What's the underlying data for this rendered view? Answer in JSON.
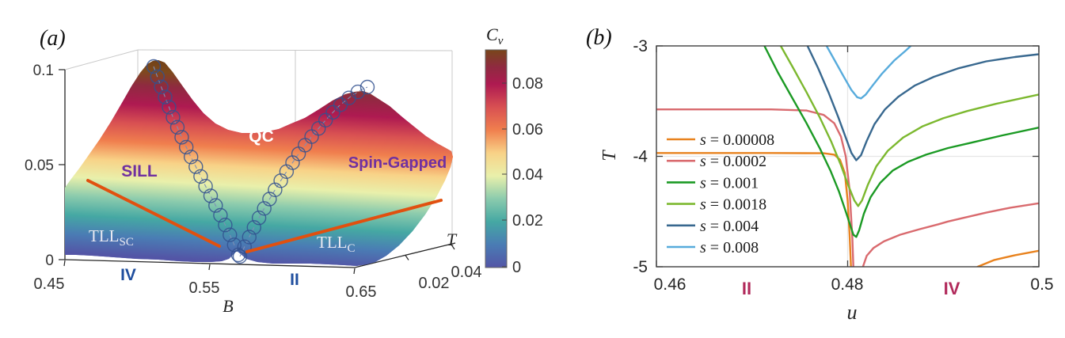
{
  "figure": {
    "background": "#ffffff",
    "description": "Two-panel physics figure: (a) 3D specific-heat surface Cv(B,T) with phase regions; (b) line plot of T vs u for six values of s"
  },
  "panel_a": {
    "tag": "(a)",
    "z_tick_labels": [
      "0",
      "0.05",
      "0.1"
    ],
    "b_axis": {
      "label": "B",
      "tick_labels": [
        "0.45",
        "0.55",
        "0.65"
      ]
    },
    "t_axis": {
      "label": "T",
      "tick_labels": [
        "0.02",
        "0.04"
      ]
    },
    "colorbar": {
      "title_main": "C",
      "title_sub": "v",
      "tick_labels": [
        "0",
        "0.02",
        "0.04",
        "0.06",
        "0.08"
      ]
    },
    "region_labels": {
      "qc": "QC",
      "sill": "SILL",
      "spin_gapped": "Spin-Gapped",
      "tll_left_main": "TLL",
      "tll_left_sub": "SC",
      "tll_right_main": "TLL",
      "tll_right_sub": "C"
    },
    "phase_labels": {
      "left": "IV",
      "right": "II"
    },
    "colors": {
      "phase_label_blue": "#1F4E9E",
      "region_purple": "#7030A0",
      "region_white": "#FFFFFF",
      "tll_light": "#E9E9F2",
      "boundary_orange": "#E1500F",
      "marker_circle_blue": "#33518F",
      "box_gray": "#C9C9C9"
    }
  },
  "panel_b": {
    "tag": "(b)",
    "x_axis": {
      "label": "u",
      "tick_labels": [
        "0.46",
        "0.48",
        "0.5"
      ]
    },
    "y_axis": {
      "label": "T",
      "tick_labels": [
        "-3",
        "-4",
        "-5"
      ]
    },
    "phase_labels": {
      "left": "II",
      "right": "IV"
    },
    "phase_label_color": "#B12A5B"
  },
  "chart_data": [
    {
      "type": "surface",
      "panel": "(a)",
      "xlabel": "B",
      "x_ticks": [
        0.45,
        0.55,
        0.65
      ],
      "ylabel": "T",
      "y_ticks": [
        0.02,
        0.04
      ],
      "zlabel": "Cv",
      "z_ticks": [
        0,
        0.05,
        0.1
      ],
      "zlim": [
        0,
        0.1
      ],
      "colorbar": {
        "label": "Cv",
        "ticks": [
          0,
          0.02,
          0.04,
          0.06,
          0.08
        ],
        "range": [
          0,
          0.095
        ]
      },
      "surface_summary": "Cv(B,T) has two ridges: a taller peak (Cv ~ 0.1) near B = 0.52 and a lower peak (Cv ~ 0.085) near B = 0.62 at high T, separated by a quantum-critical valley; Cv -> 0 as T -> 0 with a V-shaped phase boundary (open-circle markers) meeting at B ~ 0.565",
      "annotations": [
        "QC",
        "SILL",
        "Spin-Gapped",
        "TLL_SC",
        "TLL_C",
        "IV",
        "II"
      ],
      "colormap_stops": [
        "#5355A6",
        "#4A7CB4",
        "#45A8A3",
        "#8BCBAD",
        "#E9F0AB",
        "#F8D287",
        "#F07F4E",
        "#D85052",
        "#AE1A51",
        "#8F2A40",
        "#7E4A1D"
      ]
    },
    {
      "type": "line",
      "panel": "(b)",
      "xlabel": "u",
      "ylabel": "T",
      "xlim": [
        0.46,
        0.5
      ],
      "ylim": [
        -5,
        -3
      ],
      "x_ticks": [
        0.46,
        0.48,
        0.5
      ],
      "x_tick_labels": [
        "0.46",
        "0.48",
        "0.5"
      ],
      "y_ticks": [
        -3,
        -4,
        -5
      ],
      "y_tick_labels": [
        "-3",
        "-4",
        "-5"
      ],
      "grid": {
        "x_lines": [
          0.48
        ],
        "y_lines": [
          -4
        ],
        "color": "#E6E6E6"
      },
      "legend_position": "middle-left, no box",
      "region_labels": [
        {
          "text": "II",
          "u": 0.4694
        },
        {
          "text": "IV",
          "u": 0.4909
        }
      ],
      "series": [
        {
          "id": "s-0p00008",
          "label_var": "s",
          "label_rest": "= 0.00008",
          "color": "#E8821E",
          "segments": [
            [
              [
                0.46,
                -3.97
              ],
              [
                0.472,
                -3.97
              ],
              [
                0.4775,
                -3.972
              ],
              [
                0.4786,
                -3.985
              ],
              [
                0.4792,
                -4.03
              ],
              [
                0.4797,
                -4.15
              ],
              [
                0.48,
                -4.4
              ],
              [
                0.4802,
                -4.7
              ],
              [
                0.48035,
                -5.0
              ]
            ],
            [
              [
                0.4936,
                -5.0
              ],
              [
                0.4953,
                -4.94
              ],
              [
                0.4975,
                -4.895
              ],
              [
                0.5,
                -4.855
              ]
            ]
          ]
        },
        {
          "id": "s-0p0002",
          "label_var": "s",
          "label_rest": "= 0.0002",
          "color": "#D96A6E",
          "segments": [
            [
              [
                0.46,
                -3.575
              ],
              [
                0.472,
                -3.575
              ],
              [
                0.4757,
                -3.585
              ],
              [
                0.4775,
                -3.625
              ],
              [
                0.4786,
                -3.7
              ],
              [
                0.4793,
                -3.82
              ],
              [
                0.4798,
                -4.0
              ],
              [
                0.4802,
                -4.3
              ],
              [
                0.4805,
                -4.75
              ],
              [
                0.4806,
                -5.0
              ]
            ],
            [
              [
                0.4816,
                -5.0
              ],
              [
                0.482,
                -4.9
              ],
              [
                0.4827,
                -4.83
              ],
              [
                0.4838,
                -4.77
              ],
              [
                0.4855,
                -4.71
              ],
              [
                0.4875,
                -4.66
              ],
              [
                0.4895,
                -4.615
              ],
              [
                0.4905,
                -4.59
              ],
              [
                0.492,
                -4.56
              ],
              [
                0.4945,
                -4.51
              ],
              [
                0.497,
                -4.465
              ],
              [
                0.5,
                -4.425
              ]
            ]
          ]
        },
        {
          "id": "s-0p001",
          "label_var": "s",
          "label_rest": "= 0.001",
          "color": "#1B9A24",
          "segments": [
            [
              [
                0.4713,
                -3.0
              ],
              [
                0.4727,
                -3.24
              ],
              [
                0.4742,
                -3.47
              ],
              [
                0.4757,
                -3.7
              ],
              [
                0.4771,
                -3.93
              ],
              [
                0.4782,
                -4.13
              ],
              [
                0.4791,
                -4.32
              ],
              [
                0.4798,
                -4.5
              ],
              [
                0.4803,
                -4.63
              ],
              [
                0.4806,
                -4.71
              ],
              [
                0.4809,
                -4.73
              ],
              [
                0.4812,
                -4.67
              ],
              [
                0.4817,
                -4.52
              ],
              [
                0.4824,
                -4.37
              ],
              [
                0.4834,
                -4.24
              ],
              [
                0.4847,
                -4.13
              ],
              [
                0.4863,
                -4.05
              ],
              [
                0.4882,
                -3.985
              ],
              [
                0.4905,
                -3.925
              ],
              [
                0.493,
                -3.875
              ],
              [
                0.4962,
                -3.81
              ],
              [
                0.5,
                -3.74
              ]
            ]
          ]
        },
        {
          "id": "s-0p0018",
          "label_var": "s",
          "label_rest": "= 0.0018",
          "color": "#7CB82F",
          "segments": [
            [
              [
                0.473,
                -3.0
              ],
              [
                0.4743,
                -3.2
              ],
              [
                0.4757,
                -3.42
              ],
              [
                0.4771,
                -3.65
              ],
              [
                0.4783,
                -3.87
              ],
              [
                0.4793,
                -4.08
              ],
              [
                0.4801,
                -4.27
              ],
              [
                0.4807,
                -4.4
              ],
              [
                0.4811,
                -4.45
              ],
              [
                0.4815,
                -4.4
              ],
              [
                0.4821,
                -4.26
              ],
              [
                0.483,
                -4.09
              ],
              [
                0.4842,
                -3.95
              ],
              [
                0.4858,
                -3.83
              ],
              [
                0.4878,
                -3.73
              ],
              [
                0.49,
                -3.655
              ],
              [
                0.4925,
                -3.59
              ],
              [
                0.4955,
                -3.525
              ],
              [
                0.5,
                -3.44
              ]
            ]
          ]
        },
        {
          "id": "s-0p004",
          "label_var": "s",
          "label_rest": "= 0.004",
          "color": "#38688F",
          "segments": [
            [
              [
                0.4758,
                -3.0
              ],
              [
                0.4769,
                -3.2
              ],
              [
                0.478,
                -3.42
              ],
              [
                0.479,
                -3.64
              ],
              [
                0.4798,
                -3.83
              ],
              [
                0.4804,
                -3.97
              ],
              [
                0.4809,
                -4.035
              ],
              [
                0.4814,
                -3.99
              ],
              [
                0.482,
                -3.86
              ],
              [
                0.4828,
                -3.71
              ],
              [
                0.4839,
                -3.575
              ],
              [
                0.4853,
                -3.46
              ],
              [
                0.487,
                -3.36
              ],
              [
                0.489,
                -3.28
              ],
              [
                0.4915,
                -3.205
              ],
              [
                0.4945,
                -3.14
              ],
              [
                0.4975,
                -3.1
              ],
              [
                0.5,
                -3.075
              ]
            ]
          ]
        },
        {
          "id": "s-0p008",
          "label_var": "s",
          "label_rest": "= 0.008",
          "color": "#57ABDC",
          "segments": [
            [
              [
                0.4778,
                -3.0
              ],
              [
                0.4787,
                -3.14
              ],
              [
                0.4796,
                -3.28
              ],
              [
                0.4804,
                -3.4
              ],
              [
                0.481,
                -3.465
              ],
              [
                0.4814,
                -3.475
              ],
              [
                0.4819,
                -3.44
              ],
              [
                0.4826,
                -3.36
              ],
              [
                0.4836,
                -3.25
              ],
              [
                0.4849,
                -3.13
              ],
              [
                0.4861,
                -3.04
              ],
              [
                0.4866,
                -3.0
              ]
            ]
          ]
        }
      ]
    }
  ]
}
